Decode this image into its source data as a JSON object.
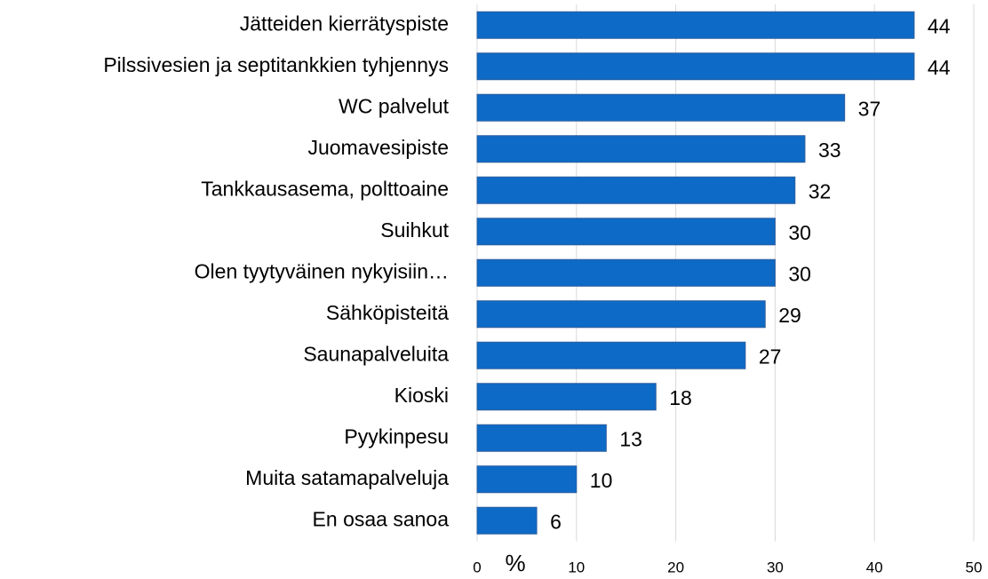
{
  "chart_data": {
    "type": "bar",
    "orientation": "horizontal",
    "categories": [
      "Jätteiden kierrätyspiste",
      "Pilssivesien ja septitankkien tyhjennys",
      "WC palvelut",
      "Juomavesipiste",
      "Tankkausasema, polttoaine",
      "Suihkut",
      "Olen tyytyväinen nykyisiin…",
      "Sähköpisteitä",
      "Saunapalveluita",
      "Kioski",
      "Pyykinpesu",
      "Muita satamapalveluja",
      "En osaa sanoa"
    ],
    "values": [
      44,
      44,
      37,
      33,
      32,
      30,
      30,
      29,
      27,
      18,
      13,
      10,
      6
    ],
    "color": "#0d6ac6",
    "xlabel": "%",
    "xlim": [
      0,
      50
    ],
    "xticks": [
      0,
      10,
      20,
      30,
      40,
      50
    ],
    "grid": true
  }
}
